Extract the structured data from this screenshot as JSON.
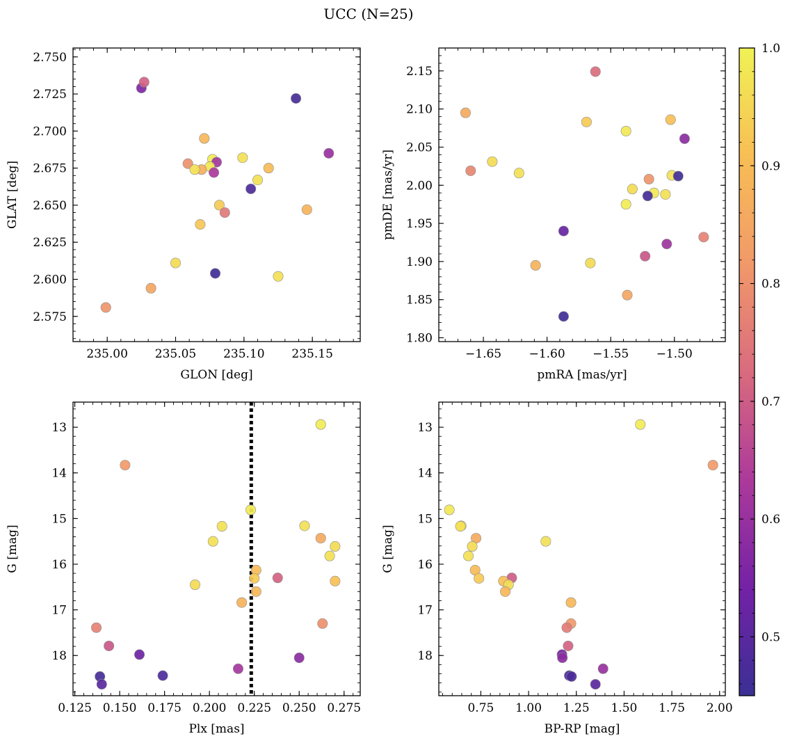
{
  "figure_title": "UCC (N=25)",
  "colorbar": {
    "range": [
      0.45,
      1.0
    ],
    "ticks": [
      "0.5",
      "0.6",
      "0.7",
      "0.8",
      "0.9",
      "1.0"
    ],
    "tick_values": [
      0.5,
      0.6,
      0.7,
      0.8,
      0.9,
      1.0
    ],
    "colormap": "plasma-like",
    "colors": [
      "#3a3094",
      "#7422a6",
      "#ac3a9b",
      "#d96b7e",
      "#f1996a",
      "#f8be55",
      "#f0f255"
    ]
  },
  "chart_data": [
    {
      "type": "scatter",
      "title": "",
      "xlabel": "GLON [deg]",
      "ylabel": "GLAT [deg]",
      "xlim": [
        234.975,
        235.185
      ],
      "ylim": [
        2.558,
        2.756
      ],
      "y_inverted": false,
      "xticks": [
        "235.00",
        "235.05",
        "235.10",
        "235.15"
      ],
      "xtick_values": [
        235.0,
        235.05,
        235.1,
        235.15
      ],
      "yticks": [
        "2.575",
        "2.600",
        "2.625",
        "2.650",
        "2.675",
        "2.700",
        "2.725",
        "2.750"
      ],
      "ytick_values": [
        2.575,
        2.6,
        2.625,
        2.65,
        2.675,
        2.7,
        2.725,
        2.75
      ],
      "series": [
        {
          "points": [
            {
              "x": 235.025,
              "y": 2.729,
              "c": 0.56
            },
            {
              "x": 235.027,
              "y": 2.733,
              "c": 0.71
            },
            {
              "x": 235.138,
              "y": 2.722,
              "c": 0.47
            },
            {
              "x": 235.071,
              "y": 2.695,
              "c": 0.89
            },
            {
              "x": 235.162,
              "y": 2.685,
              "c": 0.6
            },
            {
              "x": 235.099,
              "y": 2.682,
              "c": 0.97
            },
            {
              "x": 235.077,
              "y": 2.681,
              "c": 0.99
            },
            {
              "x": 235.08,
              "y": 2.679,
              "c": 0.62
            },
            {
              "x": 235.059,
              "y": 2.678,
              "c": 0.8
            },
            {
              "x": 235.075,
              "y": 2.676,
              "c": 0.98
            },
            {
              "x": 235.118,
              "y": 2.675,
              "c": 0.9
            },
            {
              "x": 235.069,
              "y": 2.674,
              "c": 0.87
            },
            {
              "x": 235.064,
              "y": 2.674,
              "c": 0.97
            },
            {
              "x": 235.078,
              "y": 2.672,
              "c": 0.63
            },
            {
              "x": 235.11,
              "y": 2.667,
              "c": 0.97
            },
            {
              "x": 235.105,
              "y": 2.661,
              "c": 0.48
            },
            {
              "x": 235.082,
              "y": 2.65,
              "c": 0.93
            },
            {
              "x": 235.086,
              "y": 2.645,
              "c": 0.75
            },
            {
              "x": 235.146,
              "y": 2.647,
              "c": 0.88
            },
            {
              "x": 235.068,
              "y": 2.637,
              "c": 0.92
            },
            {
              "x": 235.05,
              "y": 2.611,
              "c": 0.96
            },
            {
              "x": 235.079,
              "y": 2.604,
              "c": 0.46
            },
            {
              "x": 235.125,
              "y": 2.602,
              "c": 0.97
            },
            {
              "x": 235.032,
              "y": 2.594,
              "c": 0.85
            },
            {
              "x": 234.999,
              "y": 2.581,
              "c": 0.81
            }
          ]
        }
      ]
    },
    {
      "type": "scatter",
      "title": "",
      "xlabel": "pmRA [mas/yr]",
      "ylabel": "pmDE [mas/yr]",
      "xlim": [
        -1.685,
        -1.46
      ],
      "ylim": [
        1.795,
        2.18
      ],
      "y_inverted": false,
      "xticks": [
        "−1.65",
        "−1.60",
        "−1.55",
        "−1.50"
      ],
      "xtick_values": [
        -1.65,
        -1.6,
        -1.55,
        -1.5
      ],
      "yticks": [
        "1.80",
        "1.85",
        "1.90",
        "1.95",
        "2.00",
        "2.05",
        "2.10",
        "2.15"
      ],
      "ytick_values": [
        1.8,
        1.85,
        1.9,
        1.95,
        2.0,
        2.05,
        2.1,
        2.15
      ],
      "series": [
        {
          "points": [
            {
              "x": -1.562,
              "y": 2.149,
              "c": 0.73
            },
            {
              "x": -1.664,
              "y": 2.095,
              "c": 0.86
            },
            {
              "x": -1.503,
              "y": 2.086,
              "c": 0.91
            },
            {
              "x": -1.569,
              "y": 2.083,
              "c": 0.93
            },
            {
              "x": -1.538,
              "y": 2.071,
              "c": 0.98
            },
            {
              "x": -1.492,
              "y": 2.061,
              "c": 0.58
            },
            {
              "x": -1.643,
              "y": 2.031,
              "c": 0.96
            },
            {
              "x": -1.66,
              "y": 2.019,
              "c": 0.78
            },
            {
              "x": -1.622,
              "y": 2.016,
              "c": 0.97
            },
            {
              "x": -1.502,
              "y": 2.013,
              "c": 0.97
            },
            {
              "x": -1.497,
              "y": 2.012,
              "c": 0.46
            },
            {
              "x": -1.52,
              "y": 2.008,
              "c": 0.81
            },
            {
              "x": -1.533,
              "y": 1.995,
              "c": 0.96
            },
            {
              "x": -1.516,
              "y": 1.99,
              "c": 0.98
            },
            {
              "x": -1.507,
              "y": 1.988,
              "c": 0.97
            },
            {
              "x": -1.521,
              "y": 1.986,
              "c": 0.47
            },
            {
              "x": -1.538,
              "y": 1.975,
              "c": 0.99
            },
            {
              "x": -1.587,
              "y": 1.94,
              "c": 0.52
            },
            {
              "x": -1.477,
              "y": 1.932,
              "c": 0.77
            },
            {
              "x": -1.506,
              "y": 1.923,
              "c": 0.61
            },
            {
              "x": -1.523,
              "y": 1.907,
              "c": 0.69
            },
            {
              "x": -1.566,
              "y": 1.898,
              "c": 0.96
            },
            {
              "x": -1.609,
              "y": 1.895,
              "c": 0.88
            },
            {
              "x": -1.537,
              "y": 1.856,
              "c": 0.85
            },
            {
              "x": -1.587,
              "y": 1.828,
              "c": 0.46
            }
          ]
        }
      ]
    },
    {
      "type": "scatter",
      "title": "",
      "xlabel": "Plx [mas]",
      "ylabel": "G [mag]",
      "xlim": [
        0.124,
        0.284
      ],
      "ylim": [
        18.88,
        12.45
      ],
      "y_inverted": true,
      "xticks": [
        "0.125",
        "0.150",
        "0.175",
        "0.200",
        "0.225",
        "0.250",
        "0.275"
      ],
      "xtick_values": [
        0.125,
        0.15,
        0.175,
        0.2,
        0.225,
        0.25,
        0.275
      ],
      "yticks": [
        "13",
        "14",
        "15",
        "16",
        "17",
        "18"
      ],
      "ytick_values": [
        13,
        14,
        15,
        16,
        17,
        18
      ],
      "vline": 0.2233,
      "series": [
        {
          "points": [
            {
              "x": 0.262,
              "y": 12.94,
              "c": 0.99
            },
            {
              "x": 0.153,
              "y": 13.83,
              "c": 0.82
            },
            {
              "x": 0.223,
              "y": 14.81,
              "c": 0.99
            },
            {
              "x": 0.207,
              "y": 15.17,
              "c": 0.97
            },
            {
              "x": 0.253,
              "y": 15.16,
              "c": 0.97
            },
            {
              "x": 0.262,
              "y": 15.43,
              "c": 0.86
            },
            {
              "x": 0.202,
              "y": 15.5,
              "c": 0.97
            },
            {
              "x": 0.27,
              "y": 15.61,
              "c": 0.96
            },
            {
              "x": 0.267,
              "y": 15.82,
              "c": 0.97
            },
            {
              "x": 0.226,
              "y": 16.13,
              "c": 0.9
            },
            {
              "x": 0.225,
              "y": 16.31,
              "c": 0.93
            },
            {
              "x": 0.238,
              "y": 16.3,
              "c": 0.71
            },
            {
              "x": 0.27,
              "y": 16.37,
              "c": 0.91
            },
            {
              "x": 0.192,
              "y": 16.45,
              "c": 0.96
            },
            {
              "x": 0.226,
              "y": 16.6,
              "c": 0.89
            },
            {
              "x": 0.218,
              "y": 16.84,
              "c": 0.88
            },
            {
              "x": 0.263,
              "y": 17.3,
              "c": 0.8
            },
            {
              "x": 0.137,
              "y": 17.39,
              "c": 0.77
            },
            {
              "x": 0.144,
              "y": 17.79,
              "c": 0.69
            },
            {
              "x": 0.161,
              "y": 17.98,
              "c": 0.53
            },
            {
              "x": 0.25,
              "y": 18.05,
              "c": 0.58
            },
            {
              "x": 0.216,
              "y": 18.29,
              "c": 0.62
            },
            {
              "x": 0.174,
              "y": 18.44,
              "c": 0.48
            },
            {
              "x": 0.139,
              "y": 18.46,
              "c": 0.47
            },
            {
              "x": 0.14,
              "y": 18.63,
              "c": 0.5
            }
          ]
        }
      ]
    },
    {
      "type": "scatter",
      "title": "",
      "xlabel": "BP-RP [mag]",
      "ylabel": "G [mag]",
      "xlim": [
        0.53,
        2.03
      ],
      "ylim": [
        18.88,
        12.45
      ],
      "y_inverted": true,
      "xticks": [
        "0.75",
        "1.00",
        "1.25",
        "1.50",
        "1.75",
        "2.00"
      ],
      "xtick_values": [
        0.75,
        1.0,
        1.25,
        1.5,
        1.75,
        2.0
      ],
      "yticks": [
        "13",
        "14",
        "15",
        "16",
        "17",
        "18"
      ],
      "ytick_values": [
        13,
        14,
        15,
        16,
        17,
        18
      ],
      "series": [
        {
          "points": [
            {
              "x": 1.585,
              "y": 12.94,
              "c": 0.99
            },
            {
              "x": 1.965,
              "y": 13.83,
              "c": 0.82
            },
            {
              "x": 0.585,
              "y": 14.81,
              "c": 0.98
            },
            {
              "x": 0.647,
              "y": 15.16,
              "c": 0.97
            },
            {
              "x": 0.643,
              "y": 15.17,
              "c": 0.97
            },
            {
              "x": 0.725,
              "y": 15.43,
              "c": 0.86
            },
            {
              "x": 1.09,
              "y": 15.5,
              "c": 0.97
            },
            {
              "x": 0.705,
              "y": 15.61,
              "c": 0.96
            },
            {
              "x": 0.685,
              "y": 15.82,
              "c": 0.97
            },
            {
              "x": 0.72,
              "y": 16.13,
              "c": 0.9
            },
            {
              "x": 0.74,
              "y": 16.31,
              "c": 0.93
            },
            {
              "x": 0.912,
              "y": 16.3,
              "c": 0.7
            },
            {
              "x": 0.868,
              "y": 16.37,
              "c": 0.91
            },
            {
              "x": 0.895,
              "y": 16.45,
              "c": 0.96
            },
            {
              "x": 0.878,
              "y": 16.6,
              "c": 0.89
            },
            {
              "x": 1.222,
              "y": 16.84,
              "c": 0.89
            },
            {
              "x": 1.222,
              "y": 17.3,
              "c": 0.82
            },
            {
              "x": 1.2,
              "y": 17.39,
              "c": 0.76
            },
            {
              "x": 1.207,
              "y": 17.79,
              "c": 0.71
            },
            {
              "x": 1.175,
              "y": 17.98,
              "c": 0.55
            },
            {
              "x": 1.177,
              "y": 18.05,
              "c": 0.58
            },
            {
              "x": 1.39,
              "y": 18.29,
              "c": 0.6
            },
            {
              "x": 1.213,
              "y": 18.44,
              "c": 0.47
            },
            {
              "x": 1.225,
              "y": 18.46,
              "c": 0.48
            },
            {
              "x": 1.35,
              "y": 18.63,
              "c": 0.5
            }
          ]
        }
      ]
    }
  ]
}
